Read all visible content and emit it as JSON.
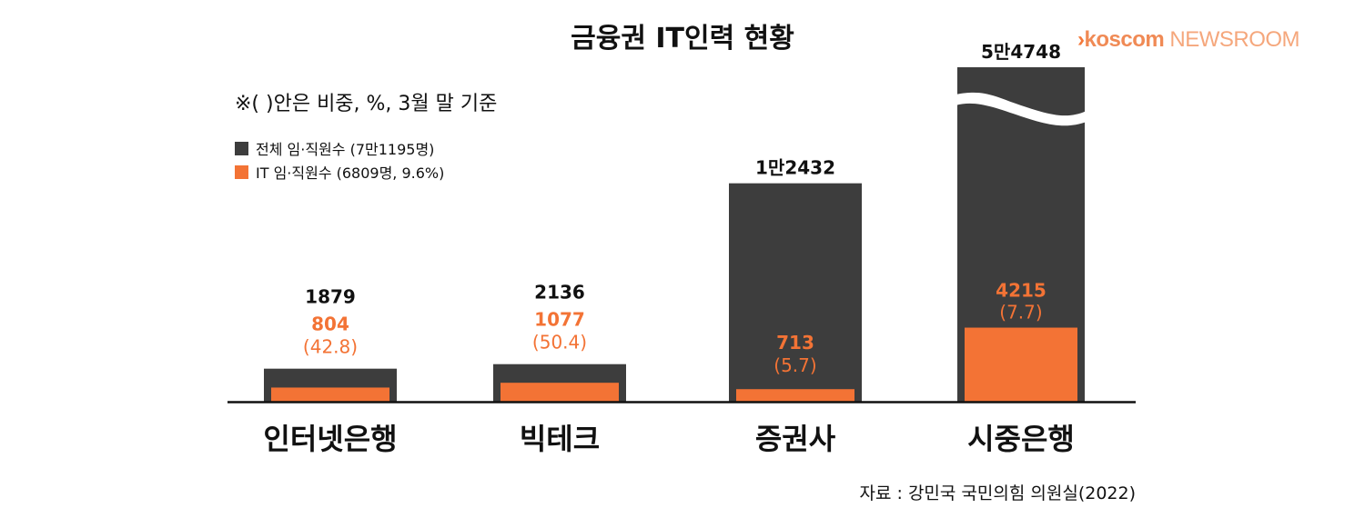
{
  "header": {
    "logo_chevron": "›",
    "logo_brand": "koscom",
    "logo_news": "NEWSROOM"
  },
  "note": "※( )안은 비중, %, 3월 말 기준",
  "source": "자료 : 강민국 국민의힘 의원실(2022)",
  "colors": {
    "total": "#3d3d3d",
    "it": "#f37335",
    "axis": "#111111"
  },
  "chart_data": {
    "type": "bar",
    "title": "금융권 IT인력 현황",
    "categories": [
      "인터넷은행",
      "빅테크",
      "증권사",
      "시중은행"
    ],
    "series": [
      {
        "name": "전체 임·직원수 (7만1195명)",
        "values": [
          1879,
          2136,
          12432,
          54748
        ],
        "labels": [
          "1879",
          "2136",
          "1만2432",
          "5만4748"
        ]
      },
      {
        "name": "IT 임·직원수 (6809명, 9.6%)",
        "values": [
          804,
          1077,
          713,
          4215
        ],
        "labels": [
          "804",
          "1077",
          "713",
          "4215"
        ],
        "share_labels": [
          "(42.8)",
          "(50.4)",
          "(5.7)",
          "(7.7)"
        ],
        "share_percent": [
          42.8,
          50.4,
          5.7,
          7.7
        ]
      }
    ],
    "axis_break": {
      "category": "시중은행"
    },
    "legend": "top-left",
    "grid": false
  }
}
